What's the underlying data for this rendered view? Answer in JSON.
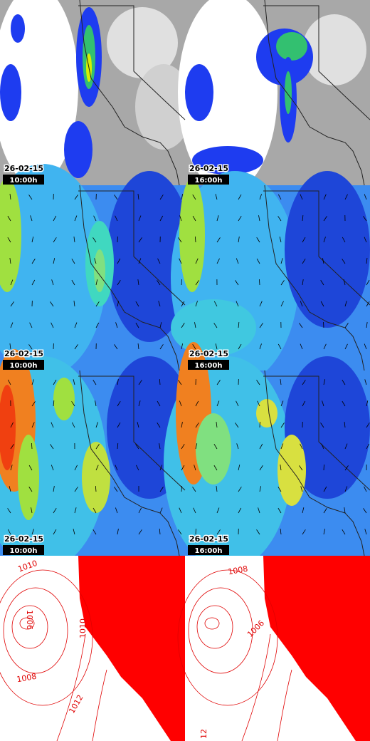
{
  "panels": [
    {
      "date": "26-02-15",
      "time": "10:00h"
    },
    {
      "date": "26-02-15",
      "time": "16:00h"
    },
    {
      "date": "26-02-15",
      "time": "10:00h"
    },
    {
      "date": "26-02-15",
      "time": "16:00h"
    },
    {
      "date": "26-02-15",
      "time": "10:00h"
    },
    {
      "date": "26-02-15",
      "time": "16:00h"
    }
  ],
  "contour_panels": [
    {
      "labels": [
        "1010",
        "1006",
        "1008",
        "1010",
        "1012"
      ]
    },
    {
      "labels": [
        "1008",
        "1006",
        "12"
      ]
    }
  ]
}
